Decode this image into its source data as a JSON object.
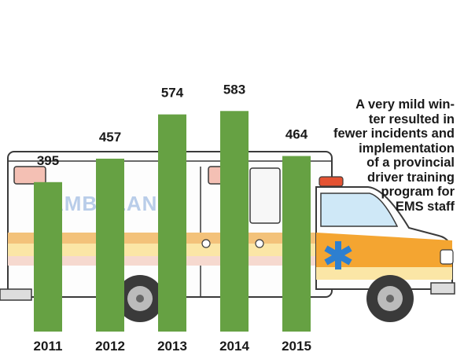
{
  "chart_data": {
    "type": "bar",
    "categories": [
      "2011",
      "2012",
      "2013",
      "2014",
      "2015"
    ],
    "values": [
      395,
      457,
      574,
      583,
      464
    ],
    "data_labels": [
      "395",
      "457",
      "574",
      "583",
      "464"
    ],
    "bar_color": "#66a143",
    "annotation": "A very mild win-\nter resulted in\nfewer incidents and\nimplementation\nof a provincial\ndriver training\nprogram for\nEMS staff",
    "xlabel": "",
    "ylabel": "",
    "grid": false,
    "y_axis_shown": false
  },
  "illustration": {
    "vehicle_text": "AMBULANCE",
    "body_color": "#ffffff",
    "stripe_colors": [
      "#f3c27a",
      "#fbe6a6",
      "#f6d9cf"
    ],
    "cab_color": "#f4a531",
    "emblem_color": "#2d7fd0"
  }
}
